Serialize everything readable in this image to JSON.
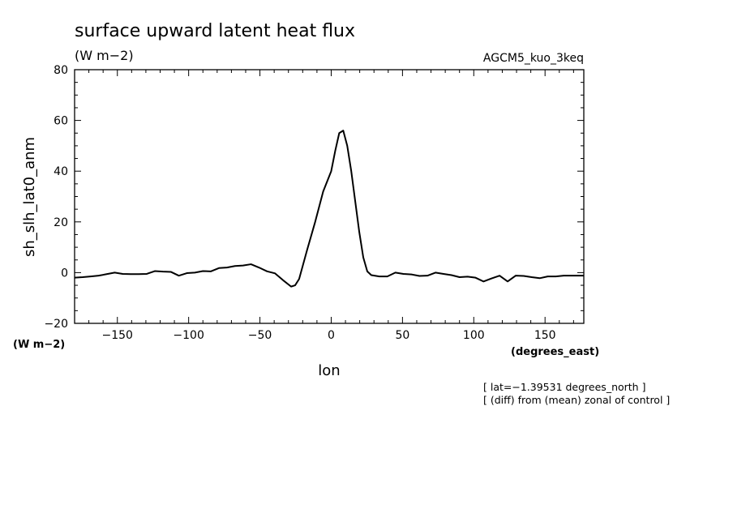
{
  "chart_data": {
    "type": "line",
    "title": "surface upward latent heat flux",
    "title_units": "(W m−2)",
    "model_label": "AGCM5_kuo_3keq",
    "ylabel": "sh_slh_lat0_anm",
    "ylabel_units": "(W m−2)",
    "xlabel": "lon",
    "xlabel_units": "(degrees_east)",
    "annotations": [
      "[ lat=−1.39531 degrees_north ]",
      "[ (diff) from (mean) zonal of control ]"
    ],
    "xlim": [
      -180,
      177.1875
    ],
    "ylim": [
      -20,
      80
    ],
    "x_ticks": [
      -150,
      -100,
      -50,
      0,
      50,
      100,
      150
    ],
    "x_tick_labels": [
      "−150",
      "−100",
      "−50",
      "0",
      "50",
      "100",
      "150"
    ],
    "y_ticks": [
      -20,
      0,
      20,
      40,
      60,
      80
    ],
    "y_tick_labels": [
      "−20",
      "0",
      "20",
      "40",
      "60",
      "80"
    ],
    "grid": false,
    "line_color": "#000000",
    "x": [
      -180,
      -174.375,
      -168.75,
      -163.125,
      -157.5,
      -151.875,
      -146.25,
      -140.625,
      -135,
      -129.375,
      -123.75,
      -118.125,
      -112.5,
      -106.875,
      -101.25,
      -95.625,
      -90,
      -84.375,
      -78.75,
      -73.125,
      -67.5,
      -61.875,
      -56.25,
      -50.625,
      -45,
      -39.375,
      -33.75,
      -28.125,
      -25.3125,
      -22.5,
      -16.875,
      -11.25,
      -5.625,
      0,
      2.8125,
      5.625,
      8.4375,
      11.25,
      14.0625,
      16.875,
      19.6875,
      22.5,
      25.3125,
      28.125,
      33.75,
      39.375,
      45,
      50.625,
      56.25,
      61.875,
      67.5,
      73.125,
      78.75,
      84.375,
      90,
      95.625,
      101.25,
      106.875,
      112.5,
      118.125,
      123.75,
      129.375,
      135,
      140.625,
      146.25,
      151.875,
      157.5,
      163.125,
      168.75,
      174.375,
      177.1875
    ],
    "y": [
      -2,
      -1.8,
      -1.5,
      -1.2,
      -0.6,
      0,
      -0.5,
      -0.6,
      -0.6,
      -0.5,
      0.6,
      0.4,
      0.3,
      -1.2,
      -0.2,
      0,
      0.6,
      0.5,
      1.8,
      2,
      2.6,
      2.8,
      3.3,
      2,
      0.5,
      -0.3,
      -3,
      -5.5,
      -5,
      -2.5,
      9,
      20,
      32,
      40,
      48,
      55,
      56,
      50,
      40,
      28,
      16,
      6,
      0.5,
      -1,
      -1.5,
      -1.5,
      0,
      -0.5,
      -0.7,
      -1.3,
      -1.2,
      0,
      -0.5,
      -1,
      -1.8,
      -1.6,
      -2,
      -3.5,
      -2.3,
      -1.2,
      -3.5,
      -1.2,
      -1.3,
      -1.8,
      -2.2,
      -1.5,
      -1.5,
      -1.2,
      -1.2,
      -1.2,
      -1.2
    ]
  }
}
